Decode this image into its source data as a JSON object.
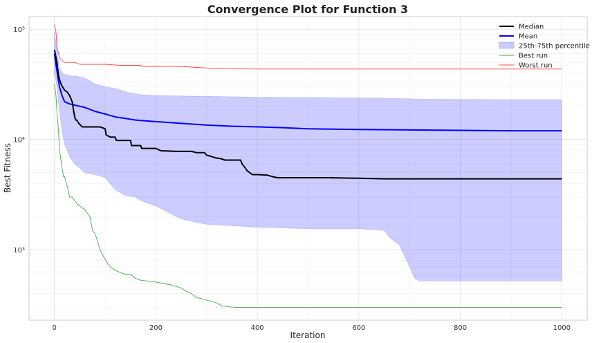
{
  "chart_data": {
    "type": "line",
    "title": "Convergence Plot for Function 3",
    "xlabel": "Iteration",
    "ylabel": "Best Fitness",
    "xlim": [
      -50,
      1050
    ],
    "ylim": [
      230,
      130000
    ],
    "yscale": "log",
    "grid": true,
    "legend_position": "top-right",
    "x_ticks": [
      0,
      200,
      400,
      600,
      800,
      1000
    ],
    "x_tick_labels": [
      "0",
      "200",
      "400",
      "600",
      "800",
      "1000"
    ],
    "y_ticks": [
      1000,
      10000,
      100000
    ],
    "y_tick_labels": [
      "10³",
      "10⁴",
      "10⁵"
    ],
    "series": [
      {
        "name": "Median",
        "style": "line",
        "color": "#000000",
        "x": [
          0,
          5,
          8,
          10,
          14,
          18,
          20,
          25,
          30,
          35,
          38,
          40,
          42,
          44,
          48,
          55,
          70,
          90,
          100,
          102,
          110,
          120,
          122,
          150,
          152,
          170,
          172,
          200,
          210,
          240,
          270,
          280,
          296,
          300,
          310,
          318,
          328,
          336,
          360,
          367,
          370,
          375,
          380,
          385,
          390,
          400,
          420,
          430,
          440,
          460,
          540,
          600,
          650,
          700,
          800,
          900,
          1000
        ],
        "y": [
          65000,
          50000,
          38000,
          35000,
          31000,
          29000,
          28000,
          27000,
          25000,
          22000,
          18000,
          16000,
          15000,
          15000,
          14000,
          13000,
          13000,
          13000,
          12500,
          11000,
          10500,
          10500,
          9800,
          9800,
          8800,
          8800,
          8300,
          8300,
          7900,
          7800,
          7800,
          7600,
          7600,
          7200,
          7000,
          6800,
          6700,
          6500,
          6500,
          6500,
          6000,
          5600,
          5200,
          5000,
          4800,
          4800,
          4750,
          4600,
          4500,
          4500,
          4500,
          4450,
          4400,
          4400,
          4400,
          4400,
          4400
        ]
      },
      {
        "name": "Mean",
        "style": "line",
        "color": "#0000ff",
        "x": [
          0,
          5,
          10,
          15,
          20,
          30,
          40,
          50,
          60,
          80,
          100,
          120,
          140,
          160,
          200,
          250,
          300,
          350,
          400,
          450,
          500,
          600,
          700,
          800,
          900,
          1000
        ],
        "y": [
          60000,
          42000,
          30000,
          25000,
          22000,
          21000,
          20500,
          20000,
          19500,
          18000,
          17000,
          16000,
          15500,
          15000,
          14500,
          14000,
          13500,
          13200,
          13000,
          12800,
          12500,
          12300,
          12200,
          12100,
          12000,
          12000
        ]
      },
      {
        "name": "25th-75th percentile",
        "style": "band",
        "color": "#0000ff",
        "x": [
          0,
          5,
          10,
          15,
          20,
          25,
          30,
          40,
          50,
          60,
          80,
          100,
          120,
          140,
          160,
          170,
          200,
          250,
          300,
          350,
          400,
          500,
          600,
          650,
          660,
          680,
          700,
          710,
          720,
          800,
          900,
          1000
        ],
        "lower": [
          40000,
          30000,
          18000,
          12000,
          9000,
          8000,
          7000,
          6000,
          5500,
          5000,
          4800,
          4500,
          3500,
          3100,
          3000,
          2800,
          2500,
          1900,
          1700,
          1650,
          1600,
          1550,
          1550,
          1500,
          1300,
          1100,
          700,
          550,
          520,
          520,
          520,
          520
        ],
        "upper": [
          95000,
          65000,
          45000,
          40000,
          39000,
          38500,
          38000,
          37500,
          37000,
          36000,
          32000,
          30000,
          29000,
          27000,
          26000,
          25500,
          25000,
          24800,
          24600,
          24400,
          24200,
          24000,
          23800,
          23700,
          23600,
          23500,
          23400,
          23300,
          23200,
          23100,
          23000,
          23000
        ]
      },
      {
        "name": "Best run",
        "style": "thin-line",
        "color": "#44aa44",
        "x": [
          0,
          3,
          5,
          8,
          10,
          13,
          15,
          18,
          20,
          25,
          30,
          35,
          40,
          45,
          50,
          55,
          60,
          70,
          75,
          80,
          85,
          90,
          95,
          100,
          105,
          110,
          120,
          130,
          140,
          150,
          160,
          170,
          200,
          230,
          250,
          260,
          270,
          280,
          300,
          320,
          330,
          340,
          360,
          400,
          500,
          600,
          700,
          800,
          900,
          1000
        ],
        "y": [
          32000,
          25000,
          18000,
          12000,
          8000,
          6500,
          5500,
          4600,
          4600,
          3800,
          3000,
          3000,
          2800,
          2600,
          2500,
          2400,
          2300,
          2000,
          1500,
          1400,
          1200,
          1000,
          900,
          820,
          750,
          700,
          650,
          620,
          600,
          600,
          550,
          530,
          510,
          480,
          450,
          420,
          400,
          370,
          350,
          330,
          310,
          305,
          300,
          300,
          300,
          300,
          300,
          300,
          300,
          300
        ]
      },
      {
        "name": "Worst run",
        "style": "thin-line",
        "color": "#ff4444",
        "x": [
          0,
          3,
          5,
          8,
          10,
          15,
          20,
          30,
          40,
          50,
          60,
          100,
          130,
          140,
          170,
          172,
          250,
          280,
          300,
          320,
          330,
          400,
          500,
          600,
          800,
          900,
          1000
        ],
        "y": [
          110000,
          95000,
          70000,
          60000,
          55000,
          52000,
          50000,
          50000,
          50000,
          48000,
          48000,
          48000,
          47000,
          47000,
          47000,
          46000,
          46000,
          45000,
          44500,
          44000,
          43800,
          43500,
          43500,
          43500,
          43500,
          43500,
          43500
        ]
      }
    ]
  }
}
